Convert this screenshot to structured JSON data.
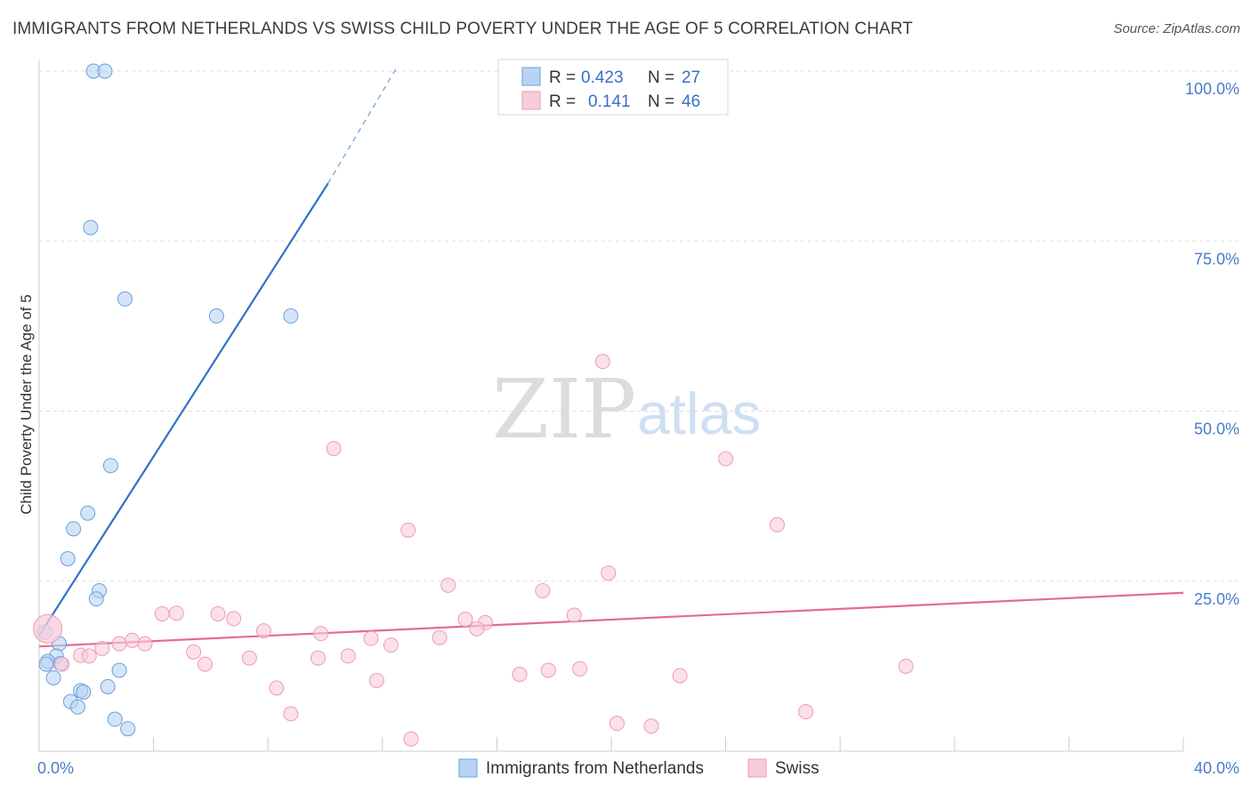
{
  "header": {
    "title": "IMMIGRANTS FROM NETHERLANDS VS SWISS CHILD POVERTY UNDER THE AGE OF 5 CORRELATION CHART",
    "source": "Source: ZipAtlas.com"
  },
  "watermark": {
    "zip": "ZIP",
    "atlas": "atlas"
  },
  "legend_box": {
    "rows": [
      {
        "r_label": "R =",
        "r_value": "0.423",
        "n_label": "N =",
        "n_value": "27"
      },
      {
        "r_label": "R =",
        "r_value": "0.141",
        "n_label": "N =",
        "n_value": "46"
      }
    ]
  },
  "chart_data": {
    "type": "scatter",
    "title": "IMMIGRANTS FROM NETHERLANDS VS SWISS CHILD POVERTY UNDER THE AGE OF 5 CORRELATION CHART",
    "xlabel": "",
    "ylabel": "Child Poverty Under the Age of 5",
    "xlim": [
      0,
      40
    ],
    "ylim": [
      0,
      100
    ],
    "x_tick_labels": [
      "0.0%",
      "40.0%"
    ],
    "y_ticks": [
      25,
      50,
      75,
      100
    ],
    "y_tick_labels": [
      "25.0%",
      "50.0%",
      "75.0%",
      "100.0%"
    ],
    "grid": true,
    "legend_position": "bottom",
    "series": [
      {
        "name": "Immigrants from Netherlands",
        "color": "#7aaee8",
        "fill": "#b9d4f3",
        "stroke": "#6a9fdc",
        "R": 0.423,
        "N": 27,
        "trend": {
          "x0": 0.0,
          "y0": 17.0,
          "x1": 10.1,
          "y1": 83.5,
          "dash_to_x": 12.5,
          "dash_to_y": 100.0,
          "color": "#2f72c9"
        },
        "points": [
          {
            "x": 1.9,
            "y": 100.0
          },
          {
            "x": 2.3,
            "y": 100.0
          },
          {
            "x": 1.8,
            "y": 77.0
          },
          {
            "x": 3.0,
            "y": 66.5
          },
          {
            "x": 6.2,
            "y": 64.0
          },
          {
            "x": 8.8,
            "y": 64.0
          },
          {
            "x": 2.5,
            "y": 42.0
          },
          {
            "x": 1.7,
            "y": 35.0
          },
          {
            "x": 1.2,
            "y": 32.7
          },
          {
            "x": 1.0,
            "y": 28.3
          },
          {
            "x": 2.1,
            "y": 23.6
          },
          {
            "x": 2.0,
            "y": 22.4
          },
          {
            "x": 0.2,
            "y": 17.5
          },
          {
            "x": 0.7,
            "y": 15.8
          },
          {
            "x": 0.6,
            "y": 14.0
          },
          {
            "x": 0.3,
            "y": 13.2
          },
          {
            "x": 0.75,
            "y": 12.9
          },
          {
            "x": 0.25,
            "y": 12.8
          },
          {
            "x": 2.8,
            "y": 11.9
          },
          {
            "x": 0.5,
            "y": 10.8
          },
          {
            "x": 2.4,
            "y": 9.5
          },
          {
            "x": 1.45,
            "y": 8.9
          },
          {
            "x": 1.55,
            "y": 8.7
          },
          {
            "x": 1.1,
            "y": 7.3
          },
          {
            "x": 1.35,
            "y": 6.5
          },
          {
            "x": 2.65,
            "y": 4.7
          },
          {
            "x": 3.1,
            "y": 3.3
          }
        ]
      },
      {
        "name": "Swiss",
        "color": "#f2a3bd",
        "fill": "#f9ccda",
        "stroke": "#ef9ab6",
        "R": 0.141,
        "N": 46,
        "trend": {
          "x0": 0.0,
          "y0": 15.4,
          "x1": 40.0,
          "y1": 23.3,
          "color": "#e36b93"
        },
        "points": [
          {
            "x": 0.3,
            "y": 18.0
          },
          {
            "x": 19.7,
            "y": 57.3
          },
          {
            "x": 10.3,
            "y": 44.5
          },
          {
            "x": 24.0,
            "y": 43.0
          },
          {
            "x": 25.8,
            "y": 33.3
          },
          {
            "x": 12.9,
            "y": 32.5
          },
          {
            "x": 19.9,
            "y": 26.2
          },
          {
            "x": 14.3,
            "y": 24.4
          },
          {
            "x": 17.6,
            "y": 23.6
          },
          {
            "x": 4.3,
            "y": 20.2
          },
          {
            "x": 4.8,
            "y": 20.3
          },
          {
            "x": 6.25,
            "y": 20.2
          },
          {
            "x": 6.8,
            "y": 19.5
          },
          {
            "x": 14.9,
            "y": 19.4
          },
          {
            "x": 18.7,
            "y": 20.0
          },
          {
            "x": 15.6,
            "y": 18.9
          },
          {
            "x": 15.3,
            "y": 18.0
          },
          {
            "x": 7.85,
            "y": 17.7
          },
          {
            "x": 9.85,
            "y": 17.3
          },
          {
            "x": 11.6,
            "y": 16.6
          },
          {
            "x": 14.0,
            "y": 16.7
          },
          {
            "x": 3.25,
            "y": 16.3
          },
          {
            "x": 2.8,
            "y": 15.8
          },
          {
            "x": 3.7,
            "y": 15.8
          },
          {
            "x": 12.3,
            "y": 15.6
          },
          {
            "x": 2.2,
            "y": 15.1
          },
          {
            "x": 5.4,
            "y": 14.6
          },
          {
            "x": 1.45,
            "y": 14.1
          },
          {
            "x": 1.75,
            "y": 14.0
          },
          {
            "x": 10.8,
            "y": 14.0
          },
          {
            "x": 7.35,
            "y": 13.7
          },
          {
            "x": 9.75,
            "y": 13.7
          },
          {
            "x": 5.8,
            "y": 12.8
          },
          {
            "x": 0.8,
            "y": 12.8
          },
          {
            "x": 30.3,
            "y": 12.5
          },
          {
            "x": 18.9,
            "y": 12.1
          },
          {
            "x": 17.8,
            "y": 11.9
          },
          {
            "x": 16.8,
            "y": 11.3
          },
          {
            "x": 22.4,
            "y": 11.1
          },
          {
            "x": 11.8,
            "y": 10.4
          },
          {
            "x": 8.3,
            "y": 9.3
          },
          {
            "x": 8.8,
            "y": 5.5
          },
          {
            "x": 26.8,
            "y": 5.8
          },
          {
            "x": 20.2,
            "y": 4.1
          },
          {
            "x": 21.4,
            "y": 3.7
          },
          {
            "x": 13.0,
            "y": 1.8
          }
        ]
      }
    ]
  }
}
